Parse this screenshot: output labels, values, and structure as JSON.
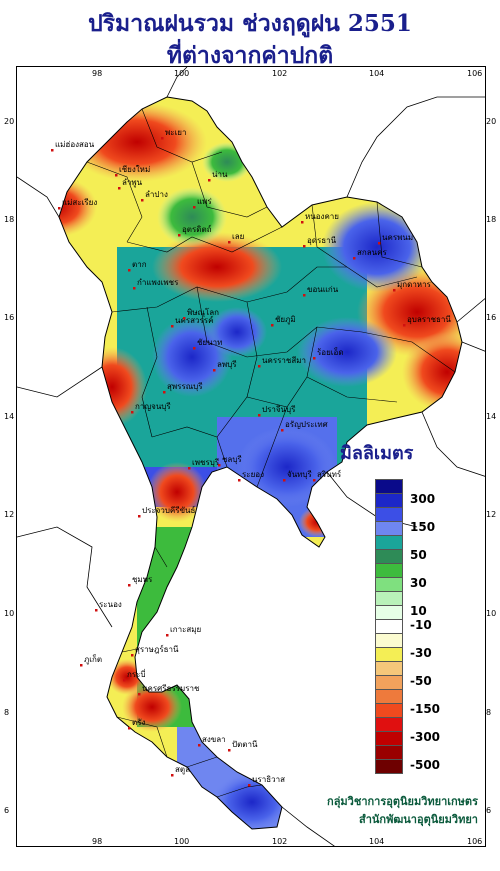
{
  "map": {
    "title_line1": "ปริมาณฝนรวม ช่วงฤดูฝน 2551",
    "title_line2": "ที่ต่างจากค่าปกติ",
    "x_ticks": [
      "98",
      "100",
      "102",
      "104",
      "106"
    ],
    "y_ticks": [
      "20",
      "18",
      "16",
      "14",
      "12",
      "10",
      "8",
      "6"
    ],
    "legend": {
      "title": "มิลลิเมตร",
      "labels": [
        "300",
        "150",
        "50",
        "30",
        "10",
        "-10",
        "-30",
        "-50",
        "-150",
        "-300",
        "-500"
      ],
      "colors": [
        "#0a0a8a",
        "#1c27c8",
        "#3c4fe6",
        "#6f86f0",
        "#1aa59a",
        "#2e8b57",
        "#3dbb3d",
        "#7fe07f",
        "#b9f2b9",
        "#e6ffe6",
        "#ffffff",
        "#fbfbd0",
        "#f4ee55",
        "#f5c77a",
        "#f2a25c",
        "#ee7a3c",
        "#f04a1e",
        "#e01010",
        "#c00000",
        "#9a0000",
        "#6e0000"
      ]
    },
    "provinces": [
      {
        "name": "แม่ฮ่องสอน"
      },
      {
        "name": "เชียงใหม่"
      },
      {
        "name": "ลำพูน"
      },
      {
        "name": "พะเยา"
      },
      {
        "name": "น่าน"
      },
      {
        "name": "ลำปาง"
      },
      {
        "name": "แพร่"
      },
      {
        "name": "แม่สะเรียง"
      },
      {
        "name": "อุตรดิตถ์"
      },
      {
        "name": "ตาก"
      },
      {
        "name": "เลย"
      },
      {
        "name": "หนองคาย"
      },
      {
        "name": "อุดรธานี"
      },
      {
        "name": "สกลนคร"
      },
      {
        "name": "นครพนม"
      },
      {
        "name": "มุกดาหาร"
      },
      {
        "name": "ขอนแก่น"
      },
      {
        "name": "ชัยภูมิ"
      },
      {
        "name": "นครสวรรค์"
      },
      {
        "name": "กำแพงเพชร"
      },
      {
        "name": "นครราชสีมา"
      },
      {
        "name": "ร้อยเอ็ด"
      },
      {
        "name": "อุบลราชธานี"
      },
      {
        "name": "สุรินทร์"
      },
      {
        "name": "กาญจนบุรี"
      },
      {
        "name": "สุพรรณบุรี"
      },
      {
        "name": "ลพบุรี"
      },
      {
        "name": "ชัยนาท"
      },
      {
        "name": "ปราจีนบุรี"
      },
      {
        "name": "อรัญประเทศ"
      },
      {
        "name": "ชลบุรี"
      },
      {
        "name": "ระยอง"
      },
      {
        "name": "จันทบุรี"
      },
      {
        "name": "เพชรบุรี"
      },
      {
        "name": "ประจวบคีรีขันธ์"
      },
      {
        "name": "ชุมพร"
      },
      {
        "name": "ระนอง"
      },
      {
        "name": "เกาะสมุย"
      },
      {
        "name": "สุราษฎร์ธานี"
      },
      {
        "name": "ภูเก็ต"
      },
      {
        "name": "นครศรีธรรมราช"
      },
      {
        "name": "กระบี่"
      },
      {
        "name": "ตรัง"
      },
      {
        "name": "สงขลา"
      },
      {
        "name": "ปัตตานี"
      },
      {
        "name": "นราธิวาส"
      },
      {
        "name": "สตูล"
      },
      {
        "name": "พิษณุโลก"
      }
    ]
  },
  "credits": {
    "line1": "กลุ่มวิชาการอุตุนิยมวิทยาเกษตร",
    "line2": "สำนักพัฒนาอุตุนิยมวิทยา"
  }
}
